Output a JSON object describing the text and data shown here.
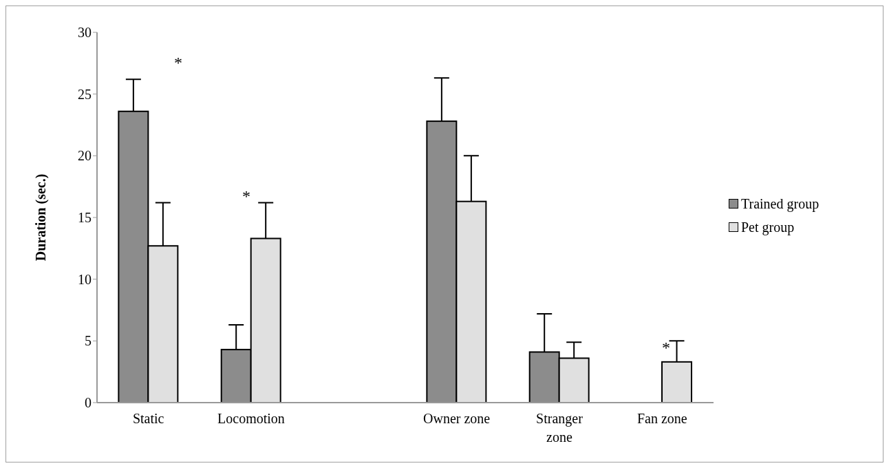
{
  "chart_data": {
    "type": "bar",
    "ylabel": "Duration (sec.)",
    "categories": [
      "Static",
      "Locomotion",
      null,
      "Owner zone",
      "Stranger zone",
      "Fan zone"
    ],
    "series": [
      {
        "name": "Trained group",
        "color": "#8c8c8c",
        "values": [
          23.6,
          4.3,
          null,
          22.8,
          4.1,
          0
        ],
        "errors": [
          [
            23.6,
            26.2
          ],
          [
            4.3,
            6.3
          ],
          null,
          [
            22.8,
            26.3
          ],
          [
            4.1,
            7.2
          ],
          null
        ]
      },
      {
        "name": "Pet group",
        "color": "#e0e0e0",
        "values": [
          12.7,
          13.3,
          null,
          16.3,
          3.6,
          3.3
        ],
        "errors": [
          [
            12.7,
            16.2
          ],
          [
            13.3,
            16.2
          ],
          null,
          [
            16.3,
            20.0
          ],
          [
            3.6,
            4.9
          ],
          [
            3.3,
            5.0
          ]
        ]
      }
    ],
    "ylim": [
      0,
      30
    ],
    "yticks": [
      0,
      5,
      10,
      15,
      20,
      25,
      30
    ],
    "grid": false,
    "legend": "right",
    "annotations": [
      "*",
      "*",
      "*"
    ]
  }
}
